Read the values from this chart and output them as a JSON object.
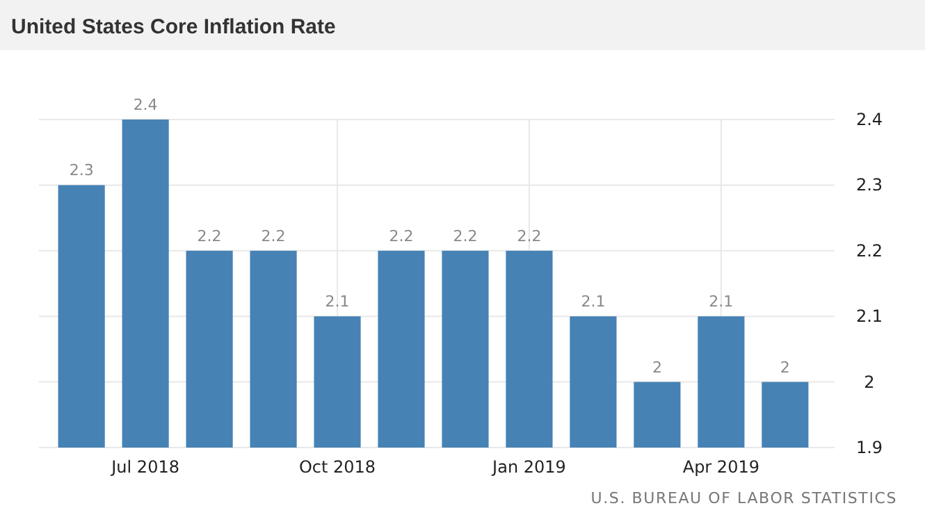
{
  "chart_data": {
    "type": "bar",
    "title": "United States Core Inflation Rate",
    "categories": [
      null,
      "Jul 2018",
      null,
      null,
      "Oct 2018",
      null,
      null,
      "Jan 2019",
      null,
      null,
      "Apr 2019",
      null
    ],
    "values": [
      2.3,
      2.4,
      2.2,
      2.2,
      2.1,
      2.2,
      2.2,
      2.2,
      2.1,
      2.0,
      2.1,
      2.0
    ],
    "color": "#4682b4",
    "ylim": [
      1.9,
      2.4
    ],
    "yticks": [
      1.9,
      2,
      2.1,
      2.2,
      2.3,
      2.4
    ],
    "grid": true,
    "data_labels": true,
    "annotations": [
      "U.S. BUREAU OF LABOR STATISTICS"
    ]
  }
}
